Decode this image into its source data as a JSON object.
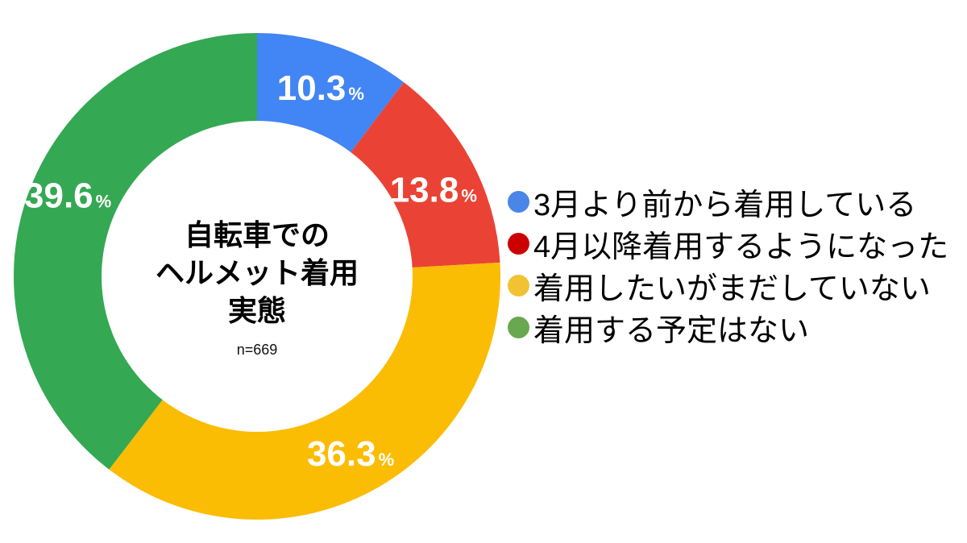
{
  "chart_data": {
    "type": "pie",
    "donut": true,
    "inner_radius_ratio": 0.64,
    "start_angle": "top",
    "direction": "clockwise",
    "legend_position": "right",
    "background_color": "#FFFFFF",
    "value_label_color": "#FFFFFF",
    "unit": "%",
    "center_title_lines": [
      "自転車での",
      "ヘルメット着用",
      "実態"
    ],
    "sample_label": "n=669",
    "slices": [
      {
        "label": "3月より前から着用している",
        "value": 10.3,
        "color": "#4285F4",
        "legend_dot_color": "#4A86E8"
      },
      {
        "label": "4月以降着用するようになった",
        "value": 13.8,
        "color": "#EA4335",
        "legend_dot_color": "#CC0000"
      },
      {
        "label": "着用したいがまだしていない",
        "value": 36.3,
        "color": "#FBBC04",
        "legend_dot_color": "#F1C232"
      },
      {
        "label": "着用する予定はない",
        "value": 39.6,
        "color": "#34A853",
        "legend_dot_color": "#6AA84F"
      }
    ]
  }
}
